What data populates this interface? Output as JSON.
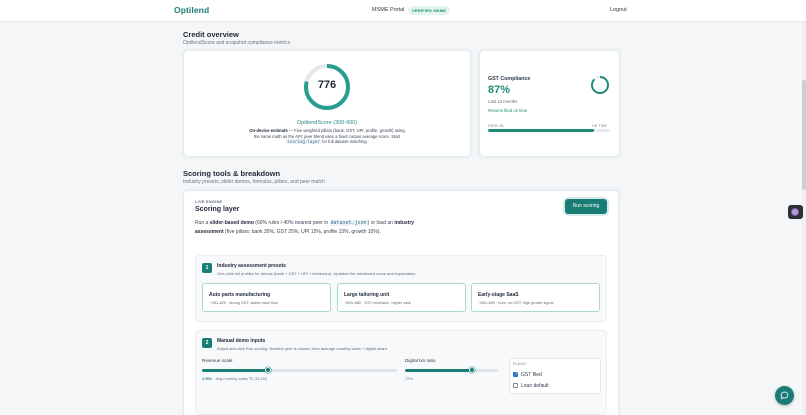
{
  "header": {
    "brand": "Optilend",
    "portal": "MSME Portal",
    "badge": "VERIFIED MSME",
    "logout": "Logout"
  },
  "credit_overview": {
    "title": "Credit overview",
    "subtitle": "OptilendScore and snapshot compliance metrics",
    "score": {
      "value": "776",
      "label": "OptilendScore (300-900)",
      "ring_fraction": 0.79,
      "desc_bold": "On-device estimate",
      "desc_text": " — Five weighted pillars (bank, GST, UPI, profile, growth) using the same math as the API; peer blend uses a fixed corpus average score. Start ",
      "desc_code": "scoring-layer",
      "desc_end": " for full dataset matching."
    },
    "gst": {
      "title": "GST Compliance",
      "percent": "87%",
      "period": "Last 12 months",
      "status": "Returns filed on time",
      "bar_left": "GSTR-1B",
      "bar_right": "ON TIME",
      "fraction": 0.87
    }
  },
  "scoring": {
    "title": "Scoring tools & breakdown",
    "subtitle": "Industry presets, slider demos, formulas, pillars, and peer match",
    "engine": {
      "kicker": "LIVE ENGINE",
      "title": "Scoring layer",
      "run_label": "Run scoring",
      "desc_1": "Run a ",
      "desc_bold_1": "slider-based demo",
      "desc_2": " (60% rules / 40% nearest peer in ",
      "desc_code": "dataset.json",
      "desc_3": ") or load an ",
      "desc_bold_2": "industry assessment",
      "desc_4": " (five pillars: bank 35%, GST 25%, UPI 15%, profile 15%, growth 10%)."
    },
    "presets": {
      "step": "1",
      "title": "Industry assessment presets",
      "subtitle": "One-click full profiles for demos (bank + GST + UPI + behaviour). Updates the dashboard score and explanation.",
      "items": [
        {
          "title": "Auto parts manufacturing",
          "sub": "~780–820 · strong GST, stable bank flow"
        },
        {
          "title": "Large tailoring unit",
          "sub": "~600–680 · GST mismatch, higher cash"
        },
        {
          "title": "Early-stage SaaS",
          "sub": "~550–650 · burn, no GST, high growth signal"
        }
      ]
    },
    "manual": {
      "step": "2",
      "title": "Manual demo inputs",
      "subtitle": "Adjust and click Run scoring. Nearest peer is chosen from average monthly sales + digital share.",
      "revenue": {
        "label": "Revenue scale",
        "value": "1.00×",
        "note": " · Avg monthly sales ₹2,33,333",
        "fraction": 0.34
      },
      "digital": {
        "label": "Digital txn ratio",
        "value": "72%",
        "fraction": 0.72
      },
      "flags": {
        "heading": "FLAGS",
        "items": [
          {
            "label": "GST filed",
            "checked": true
          },
          {
            "label": "Loan default",
            "checked": false
          }
        ]
      }
    }
  },
  "colors": {
    "accent": "#1a7d75",
    "success": "#1f8a76",
    "checkbox": "#2b6fc4"
  },
  "icons": {
    "chat": "chat-bubble-icon",
    "widget": "avatar-icon"
  }
}
